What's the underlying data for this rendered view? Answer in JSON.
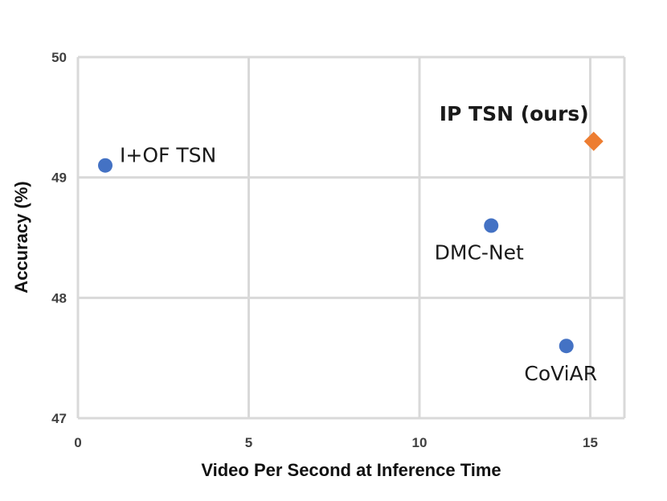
{
  "chart_data": {
    "type": "scatter",
    "xlabel": "Video Per Second at Inference Time",
    "ylabel": "Accuracy (%)",
    "xlim": [
      0,
      16
    ],
    "ylim": [
      47,
      50
    ],
    "x_ticks": [
      0,
      5,
      10,
      15
    ],
    "y_ticks": [
      47,
      48,
      49,
      50
    ],
    "grid": true,
    "points": [
      {
        "label": "I+OF TSN",
        "x": 0.8,
        "y": 49.1,
        "marker": "circle",
        "color": "#4472c4",
        "label_pos": "right"
      },
      {
        "label": "DMC-Net",
        "x": 12.1,
        "y": 48.6,
        "marker": "circle",
        "color": "#4472c4",
        "label_pos": "below-left"
      },
      {
        "label": "CoViAR",
        "x": 14.3,
        "y": 47.6,
        "marker": "circle",
        "color": "#4472c4",
        "label_pos": "below"
      },
      {
        "label": "IP TSN (ours)",
        "x": 15.1,
        "y": 49.3,
        "marker": "diamond",
        "color": "#ed7d31",
        "label_pos": "above-left",
        "bold": true
      }
    ]
  }
}
